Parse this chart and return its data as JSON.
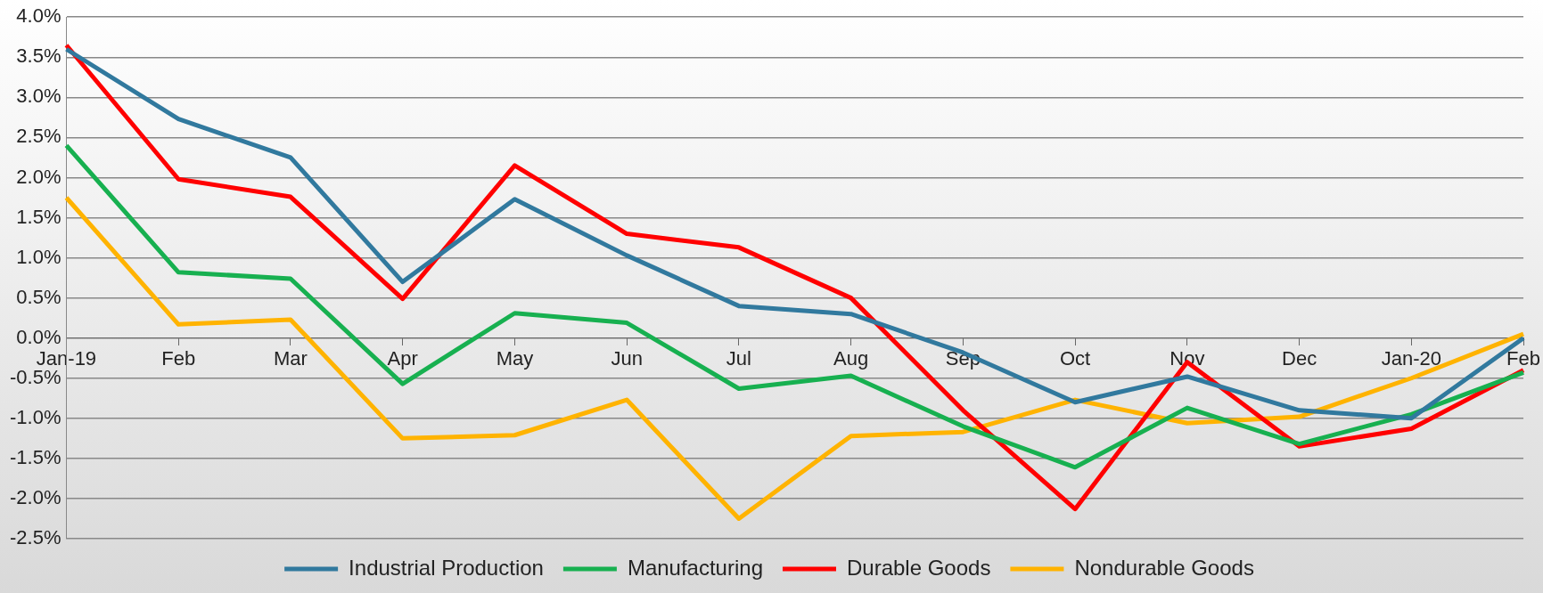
{
  "chart_data": {
    "type": "line",
    "categories": [
      "Jan-19",
      "Feb",
      "Mar",
      "Apr",
      "May",
      "Jun",
      "Jul",
      "Aug",
      "Sep",
      "Oct",
      "Nov",
      "Dec",
      "Jan-20",
      "Feb"
    ],
    "series": [
      {
        "name": "Industrial Production",
        "color": "#31799e",
        "values": [
          3.6,
          2.73,
          2.25,
          0.7,
          1.73,
          1.03,
          0.4,
          0.3,
          -0.18,
          -0.8,
          -0.48,
          -0.9,
          -1.0,
          0.0
        ]
      },
      {
        "name": "Manufacturing",
        "color": "#17b050",
        "values": [
          2.4,
          0.82,
          0.74,
          -0.57,
          0.31,
          0.19,
          -0.63,
          -0.47,
          -1.1,
          -1.61,
          -0.87,
          -1.32,
          -0.95,
          -0.43
        ]
      },
      {
        "name": "Durable Goods",
        "color": "#ff0000",
        "values": [
          3.65,
          1.98,
          1.76,
          0.49,
          2.15,
          1.3,
          1.13,
          0.5,
          -0.9,
          -2.13,
          -0.3,
          -1.35,
          -1.13,
          -0.4
        ]
      },
      {
        "name": "Nondurable Goods",
        "color": "#ffb300",
        "values": [
          1.75,
          0.17,
          0.23,
          -1.25,
          -1.21,
          -0.77,
          -2.25,
          -1.22,
          -1.17,
          -0.77,
          -1.06,
          -0.98,
          -0.5,
          0.05
        ]
      }
    ],
    "ylim": [
      -2.5,
      4.0
    ],
    "yticks": [
      {
        "value": -2.5,
        "label": "-2.5%"
      },
      {
        "value": -2.0,
        "label": "-2.0%"
      },
      {
        "value": -1.5,
        "label": "-1.5%"
      },
      {
        "value": -1.0,
        "label": "-1.0%"
      },
      {
        "value": -0.5,
        "label": "-0.5%"
      },
      {
        "value": 0,
        "label": "0.0%"
      },
      {
        "value": 0.5,
        "label": "0.5%"
      },
      {
        "value": 1.0,
        "label": "1.0%"
      },
      {
        "value": 1.5,
        "label": "1.5%"
      },
      {
        "value": 2.0,
        "label": "2.0%"
      },
      {
        "value": 2.5,
        "label": "2.5%"
      },
      {
        "value": 3.0,
        "label": "3.0%"
      },
      {
        "value": 3.5,
        "label": "3.5%"
      },
      {
        "value": 4.0,
        "label": "4.0%"
      }
    ],
    "grid": "y",
    "legend": "bottom",
    "marker": "none",
    "line_style": "solid"
  }
}
